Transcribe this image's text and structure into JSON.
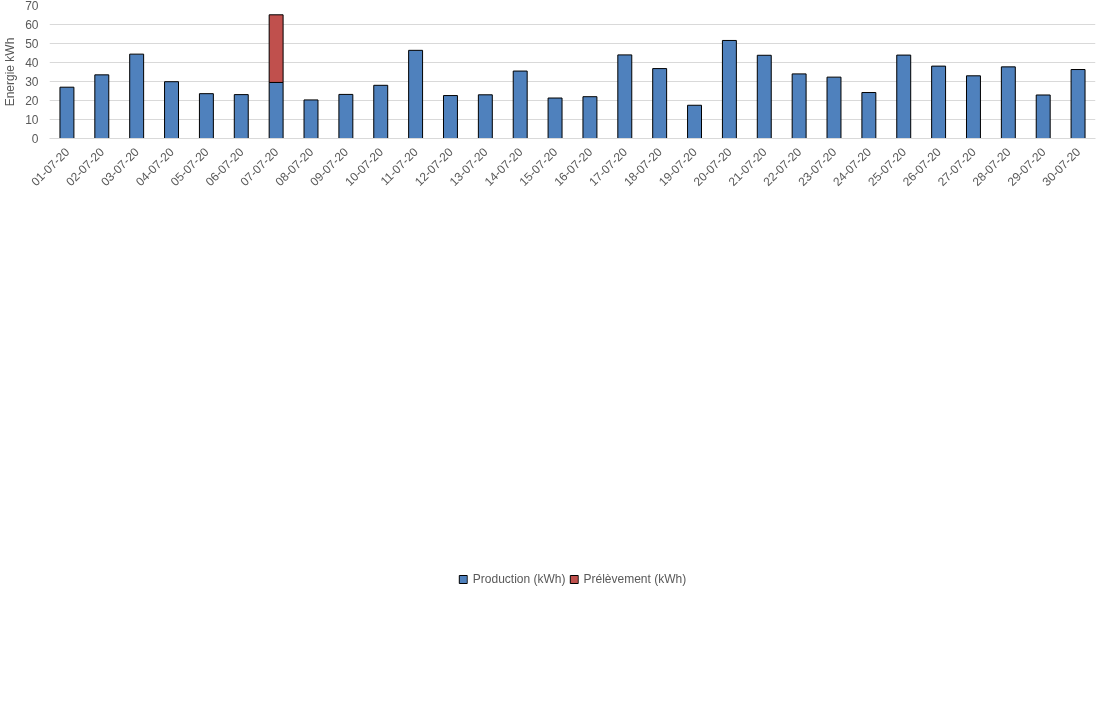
{
  "chart_data": {
    "type": "bar",
    "stacked": true,
    "ylabel": "Energie kWh",
    "categories": [
      "01-07-20",
      "02-07-20",
      "03-07-20",
      "04-07-20",
      "05-07-20",
      "06-07-20",
      "07-07-20",
      "08-07-20",
      "09-07-20",
      "10-07-20",
      "11-07-20",
      "12-07-20",
      "13-07-20",
      "14-07-20",
      "15-07-20",
      "16-07-20",
      "17-07-20",
      "18-07-20",
      "19-07-20",
      "20-07-20",
      "21-07-20",
      "22-07-20",
      "23-07-20",
      "24-07-20",
      "25-07-20",
      "26-07-20",
      "27-07-20",
      "28-07-20",
      "29-07-20",
      "30-07-20"
    ],
    "series": [
      {
        "name": "Production (kWh)",
        "color": "#4f81bd",
        "values": [
          27.0,
          33.5,
          44.4,
          29.9,
          23.6,
          23.1,
          29.5,
          20.3,
          23.2,
          28.0,
          46.4,
          22.6,
          23.0,
          35.5,
          21.3,
          22.0,
          44.0,
          36.8,
          17.5,
          51.6,
          43.8,
          34.0,
          32.3,
          24.2,
          43.9,
          38.1,
          33.0,
          37.7,
          22.9,
          36.3
        ]
      },
      {
        "name": "Prélèvement (kWh)",
        "color": "#c0504d",
        "values": [
          null,
          null,
          null,
          null,
          null,
          null,
          35.6,
          null,
          null,
          null,
          null,
          null,
          null,
          null,
          null,
          null,
          null,
          null,
          null,
          null,
          null,
          null,
          null,
          null,
          null,
          null,
          null,
          null,
          null,
          null
        ]
      }
    ],
    "ylim": [
      0,
      70
    ],
    "yticks": [
      0,
      10,
      20,
      30,
      40,
      50,
      60,
      70
    ],
    "grid": "y",
    "legend": "bottom"
  }
}
